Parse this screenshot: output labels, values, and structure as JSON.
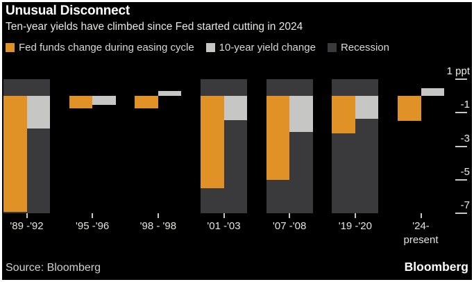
{
  "header": {
    "title": "Unusual Disconnect",
    "subtitle": "Ten-year yields have climbed since Fed started cutting in 2024"
  },
  "legend": [
    {
      "label": "Fed funds change during easing cycle",
      "color_key": "fed_funds"
    },
    {
      "label": "10-year yield change",
      "color_key": "ten_year"
    },
    {
      "label": "Recession",
      "color_key": "recession"
    }
  ],
  "colors": {
    "fed_funds": "#E09227",
    "ten_year": "#C6C6C4",
    "recession": "#3A3A3C",
    "background": "#000000",
    "frame": "#FFFFFF",
    "tick": "#C9C9C7"
  },
  "footer": {
    "source": "Source: Bloomberg",
    "brand": "Bloomberg"
  },
  "chart_data": {
    "type": "bar",
    "unit": "ppt",
    "title": "Unusual Disconnect",
    "subtitle": "Ten-year yields have climbed since Fed started cutting in 2024",
    "categories": [
      "'89 -'92",
      "'95 -'96",
      "'98 - '98",
      "'01 -'03",
      "'07 -'08",
      "'19 -'20",
      "'24-\npresent"
    ],
    "series": [
      {
        "name": "Fed funds change during easing cycle",
        "color_key": "fed_funds",
        "values": [
          -6.9,
          -0.75,
          -0.75,
          -5.5,
          -5.0,
          -2.25,
          -1.5
        ]
      },
      {
        "name": "10-year yield change",
        "color_key": "ten_year",
        "values": [
          -1.95,
          -0.55,
          0.3,
          -1.45,
          -2.15,
          -1.35,
          0.45
        ]
      }
    ],
    "recession_bands": [
      true,
      false,
      false,
      true,
      true,
      true,
      false
    ],
    "yticks": [
      {
        "label": "1 ppt",
        "value": 1
      },
      {
        "label": "-1",
        "value": -1
      },
      {
        "label": "-3",
        "value": -3
      },
      {
        "label": "-5",
        "value": -5
      },
      {
        "label": "-7",
        "value": -7
      }
    ],
    "ylim": [
      -7,
      1
    ],
    "grid": false,
    "legend_position": "top",
    "axis_side": "right"
  }
}
